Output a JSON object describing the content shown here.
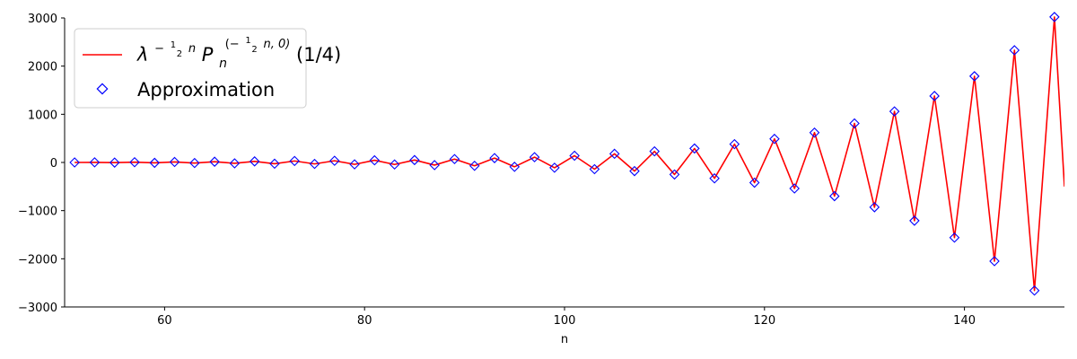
{
  "chart_data": {
    "type": "line",
    "title": "",
    "xlabel": "n",
    "ylabel": "",
    "xlim": [
      50,
      150
    ],
    "ylim": [
      -3000,
      3000
    ],
    "xticks": [
      60,
      80,
      100,
      120,
      140
    ],
    "yticks": [
      -3000,
      -2000,
      -1000,
      0,
      1000,
      2000,
      3000
    ],
    "tick_labels": {
      "x": [
        "60",
        "80",
        "100",
        "120",
        "140"
      ],
      "y": [
        "−3000",
        "−2000",
        "−1000",
        "0",
        "1000",
        "2000",
        "3000"
      ]
    },
    "grid": false,
    "legend_position": "top-left",
    "series": [
      {
        "name": "λ^{−½n} P_n^{(−½n, 0)}(1/4)",
        "legend_label": {
          "base_lambda": "λ",
          "exp_lambda": "−",
          "exp_lambda_tail": "n",
          "base_P": "P",
          "sub_P": "n",
          "sup_P_open": "(−",
          "sup_P_close": "n, 0)",
          "frac_num": "1",
          "frac_den": "2",
          "arg": "(1/4)"
        },
        "style": "line",
        "color": "#ff0000",
        "x": [
          51,
          53,
          55,
          57,
          59,
          61,
          63,
          65,
          67,
          69,
          71,
          73,
          75,
          77,
          79,
          81,
          83,
          85,
          87,
          89,
          91,
          93,
          95,
          97,
          99,
          101,
          103,
          105,
          107,
          109,
          111,
          113,
          115,
          117,
          119,
          121,
          123,
          125,
          127,
          129,
          131,
          133,
          135,
          137,
          139,
          141,
          143,
          145,
          147,
          149,
          150
        ],
        "y": [
          0,
          2,
          -3,
          5,
          -8,
          10,
          -12,
          15,
          -18,
          22,
          -26,
          30,
          -30,
          35,
          -40,
          45,
          -42,
          50,
          -55,
          70,
          -70,
          90,
          -90,
          110,
          -110,
          140,
          -140,
          180,
          -180,
          230,
          -250,
          290,
          -330,
          380,
          -420,
          490,
          -540,
          620,
          -700,
          810,
          -930,
          1060,
          -1210,
          1380,
          -1560,
          1790,
          -2050,
          2330,
          -2660,
          3020,
          -500
        ]
      },
      {
        "name": "Approximation",
        "style": "markers",
        "marker": "diamond",
        "color": "#0000ff",
        "x": [
          51,
          53,
          55,
          57,
          59,
          61,
          63,
          65,
          67,
          69,
          71,
          73,
          75,
          77,
          79,
          81,
          83,
          85,
          87,
          89,
          91,
          93,
          95,
          97,
          99,
          101,
          103,
          105,
          107,
          109,
          111,
          113,
          115,
          117,
          119,
          121,
          123,
          125,
          127,
          129,
          131,
          133,
          135,
          137,
          139,
          141,
          143,
          145,
          147,
          149
        ],
        "y": [
          0,
          2,
          -3,
          5,
          -8,
          10,
          -12,
          15,
          -18,
          22,
          -26,
          30,
          -30,
          35,
          -40,
          45,
          -42,
          50,
          -55,
          70,
          -70,
          90,
          -90,
          110,
          -110,
          140,
          -140,
          180,
          -180,
          230,
          -250,
          290,
          -330,
          380,
          -420,
          490,
          -540,
          620,
          -700,
          810,
          -930,
          1060,
          -1210,
          1380,
          -1560,
          1790,
          -2050,
          2330,
          -2660,
          3020
        ]
      }
    ]
  }
}
